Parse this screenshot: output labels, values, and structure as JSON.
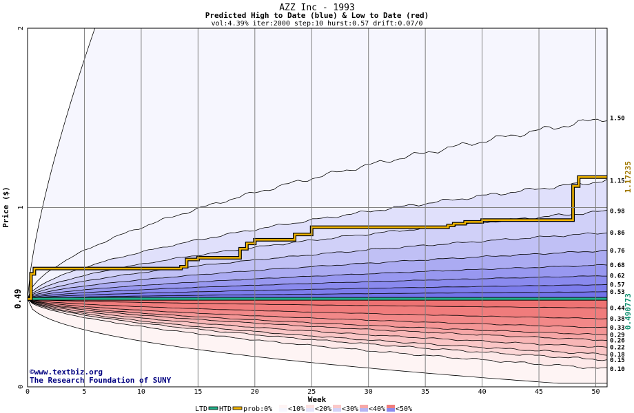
{
  "chart_data": {
    "type": "area",
    "title": "AZZ Inc - 1993",
    "subtitle": "Predicted High to Date (blue) &  Low to Date (red)",
    "params": "vol:4.39% iter:2000 step:10 hurst:0.57 drift:0.07/0",
    "xlabel": "Week",
    "ylabel": "Price ($)",
    "xlim": [
      0,
      51
    ],
    "ylim": [
      0,
      2
    ],
    "x_ticks": [
      "0",
      "5",
      "10",
      "15",
      "20",
      "25",
      "30",
      "35",
      "40",
      "45",
      "50"
    ],
    "y_ticks": [
      "0",
      "1",
      "2"
    ],
    "start_price_label": "0.49",
    "right_label_gold": "1.17235",
    "right_label_green": "0.490773",
    "blue_quantiles": [
      {
        "label": "1.50",
        "end": 1.5
      },
      {
        "label": "1.15",
        "end": 1.15
      },
      {
        "label": "0.98",
        "end": 0.98
      },
      {
        "label": "0.86",
        "end": 0.86
      },
      {
        "label": "0.76",
        "end": 0.76
      },
      {
        "label": "0.68",
        "end": 0.68
      },
      {
        "label": "0.62",
        "end": 0.62
      },
      {
        "label": "0.57",
        "end": 0.57
      },
      {
        "label": "0.53",
        "end": 0.53
      }
    ],
    "red_quantiles": [
      {
        "label": "0.44",
        "end": 0.44
      },
      {
        "label": "0.38",
        "end": 0.38
      },
      {
        "label": "0.33",
        "end": 0.33
      },
      {
        "label": "0.29",
        "end": 0.29
      },
      {
        "label": "0.26",
        "end": 0.26
      },
      {
        "label": "0.22",
        "end": 0.22
      },
      {
        "label": "0.18",
        "end": 0.18
      },
      {
        "label": "0.15",
        "end": 0.15
      },
      {
        "label": "0.10",
        "end": 0.1
      }
    ],
    "htd_steps": [
      [
        0,
        0.49
      ],
      [
        0.3,
        0.63
      ],
      [
        0.6,
        0.66
      ],
      [
        13.5,
        0.67
      ],
      [
        14,
        0.71
      ],
      [
        15,
        0.72
      ],
      [
        18.7,
        0.77
      ],
      [
        19.3,
        0.8
      ],
      [
        20,
        0.82
      ],
      [
        23.5,
        0.85
      ],
      [
        25,
        0.89
      ],
      [
        37,
        0.9
      ],
      [
        37.5,
        0.91
      ],
      [
        38.5,
        0.92
      ],
      [
        40,
        0.93
      ],
      [
        48,
        1.12
      ],
      [
        48.5,
        1.17
      ],
      [
        51,
        1.17
      ]
    ],
    "ltd_value": 0.4908,
    "colors": {
      "blue_dark": "#6b6bec",
      "red_dark": "#f07070",
      "htd_line": "#f0b400",
      "ltd_line": "#20b088",
      "gold_text": "#a07800",
      "green_text": "#109070",
      "navy_text": "#000080"
    },
    "legend": {
      "ltd": "LTD",
      "htd": "HTD",
      "prob": "prob:0%",
      "bins": [
        "<10%",
        "<20%",
        "<30%",
        "<40%",
        "<50%"
      ]
    }
  },
  "credits": {
    "site": "©www.textbiz.org",
    "org": "The Research Foundation of SUNY"
  }
}
